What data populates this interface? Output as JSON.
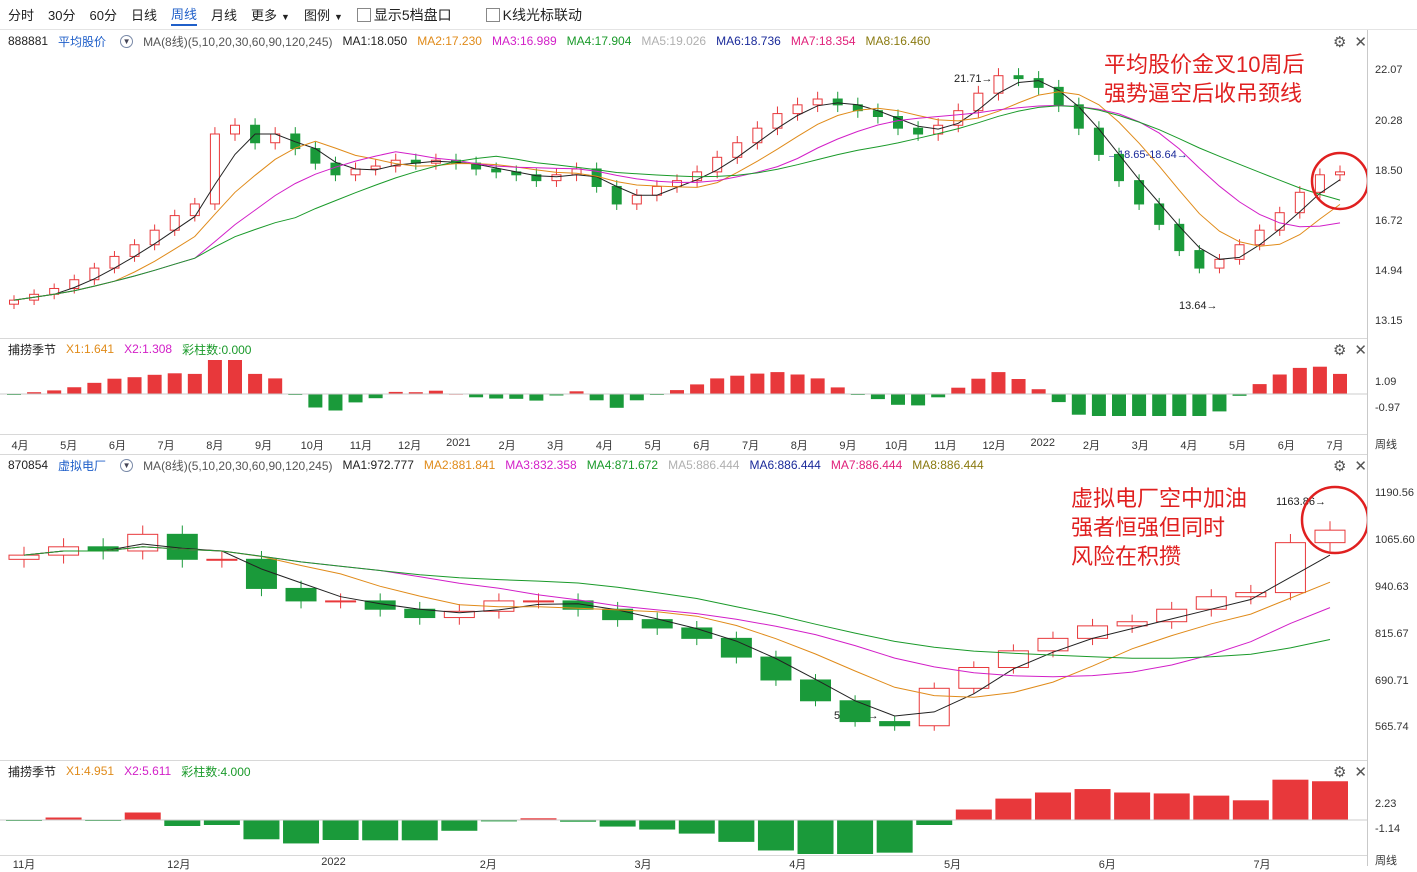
{
  "toolbar": {
    "tabs": [
      "分时",
      "30分",
      "60分",
      "日线",
      "周线",
      "月线"
    ],
    "active_tab": "周线",
    "more_label": "更多",
    "legend_label": "图例",
    "checkbox1": "显示5档盘口",
    "checkbox2": "K线光标联动"
  },
  "chart1": {
    "code": "888881",
    "name": "平均股价",
    "ma_label": "MA(8线)(5,10,20,30,60,90,120,245)",
    "ma_values": [
      {
        "label": "MA1:18.050",
        "color": "#222222"
      },
      {
        "label": "MA2:17.230",
        "color": "#e08b1a"
      },
      {
        "label": "MA3:16.989",
        "color": "#d21fc8"
      },
      {
        "label": "MA4:17.904",
        "color": "#1a9a2a"
      },
      {
        "label": "MA5:19.026",
        "color": "#b0b0b0"
      },
      {
        "label": "MA6:18.736",
        "color": "#1a2a9a"
      },
      {
        "label": "MA7:18.354",
        "color": "#e0207a"
      },
      {
        "label": "MA8:16.460",
        "color": "#8a7a10"
      }
    ],
    "y_ticks": [
      "22.07",
      "20.28",
      "18.50",
      "16.72",
      "14.94",
      "13.15"
    ],
    "annotation": [
      "平均股价金叉10周后",
      "强势逼空后收吊颈线"
    ],
    "high_label": "21.71",
    "low_label": "13.64",
    "level_label": "18.65-18.64"
  },
  "indicator1": {
    "name": "捕捞季节",
    "x1": "X1:1.641",
    "x2": "X2:1.308",
    "bars": "彩柱数:0.000",
    "y_ticks": [
      "1.09",
      "-0.97"
    ]
  },
  "xaxis1": {
    "labels": [
      "4月",
      "5月",
      "6月",
      "7月",
      "8月",
      "9月",
      "10月",
      "11月",
      "12月",
      "2021",
      "2月",
      "3月",
      "4月",
      "5月",
      "6月",
      "7月",
      "8月",
      "9月",
      "10月",
      "11月",
      "12月",
      "2022",
      "2月",
      "3月",
      "4月",
      "5月",
      "6月",
      "7月"
    ],
    "period": "周线"
  },
  "chart2": {
    "code": "870854",
    "name": "虚拟电厂",
    "ma_label": "MA(8线)(5,10,20,30,60,90,120,245)",
    "ma_values": [
      {
        "label": "MA1:972.777",
        "color": "#222222"
      },
      {
        "label": "MA2:881.841",
        "color": "#e08b1a"
      },
      {
        "label": "MA3:832.358",
        "color": "#d21fc8"
      },
      {
        "label": "MA4:871.672",
        "color": "#1a9a2a"
      },
      {
        "label": "MA5:886.444",
        "color": "#b0b0b0"
      },
      {
        "label": "MA6:886.444",
        "color": "#1a2a9a"
      },
      {
        "label": "MA7:886.444",
        "color": "#e0207a"
      },
      {
        "label": "MA8:886.444",
        "color": "#8a7a10"
      }
    ],
    "y_ticks": [
      "1190.56",
      "1065.60",
      "940.63",
      "815.67",
      "690.71",
      "565.74"
    ],
    "annotation": [
      "虚拟电厂空中加油",
      "强者恒强但同时",
      "风险在积攒"
    ],
    "high_label": "1163.86",
    "low_label": "592.44"
  },
  "indicator2": {
    "name": "捕捞季节",
    "x1": "X1:4.951",
    "x2": "X2:5.611",
    "bars": "彩柱数:4.000",
    "y_ticks": [
      "2.23",
      "-1.14"
    ]
  },
  "xaxis2": {
    "labels": [
      "11月",
      "12月",
      "2022",
      "2月",
      "3月",
      "4月",
      "5月",
      "6月",
      "7月"
    ],
    "period": "周线"
  },
  "colors": {
    "up": "#e8383b",
    "down": "#1a9a3a",
    "accent": "#1f5fc9",
    "annotation": "#e02020"
  },
  "chart_data": [
    {
      "type": "candlestick",
      "title": "平均股价",
      "ylim": [
        13.15,
        22.07
      ],
      "series_close": [
        13.9,
        14.1,
        14.3,
        14.6,
        15.0,
        15.4,
        15.8,
        16.3,
        16.8,
        17.2,
        19.6,
        19.9,
        19.3,
        19.6,
        19.1,
        18.6,
        18.2,
        18.4,
        18.5,
        18.7,
        18.6,
        18.7,
        18.6,
        18.4,
        18.3,
        18.2,
        18.0,
        18.2,
        18.4,
        17.8,
        17.2,
        17.5,
        17.8,
        18.0,
        18.3,
        18.8,
        19.3,
        19.8,
        20.3,
        20.6,
        20.8,
        20.6,
        20.4,
        20.2,
        19.8,
        19.6,
        19.9,
        20.4,
        21.0,
        21.6,
        21.5,
        21.2,
        20.6,
        19.8,
        18.9,
        18.0,
        17.2,
        16.5,
        15.6,
        15.0,
        15.3,
        15.8,
        16.3,
        16.9,
        17.6,
        18.2,
        18.3
      ],
      "high": 21.71,
      "low": 13.64
    },
    {
      "type": "candlestick",
      "title": "虚拟电厂",
      "ylim": [
        565.74,
        1190.56
      ],
      "series_close": [
        1010,
        1030,
        1020,
        1060,
        1000,
        1000,
        930,
        900,
        900,
        880,
        860,
        875,
        900,
        900,
        880,
        855,
        835,
        810,
        765,
        710,
        660,
        610,
        600,
        690,
        740,
        780,
        810,
        840,
        850,
        880,
        910,
        920,
        1040,
        1070
      ],
      "high": 1163.86,
      "low": 592.44
    }
  ]
}
